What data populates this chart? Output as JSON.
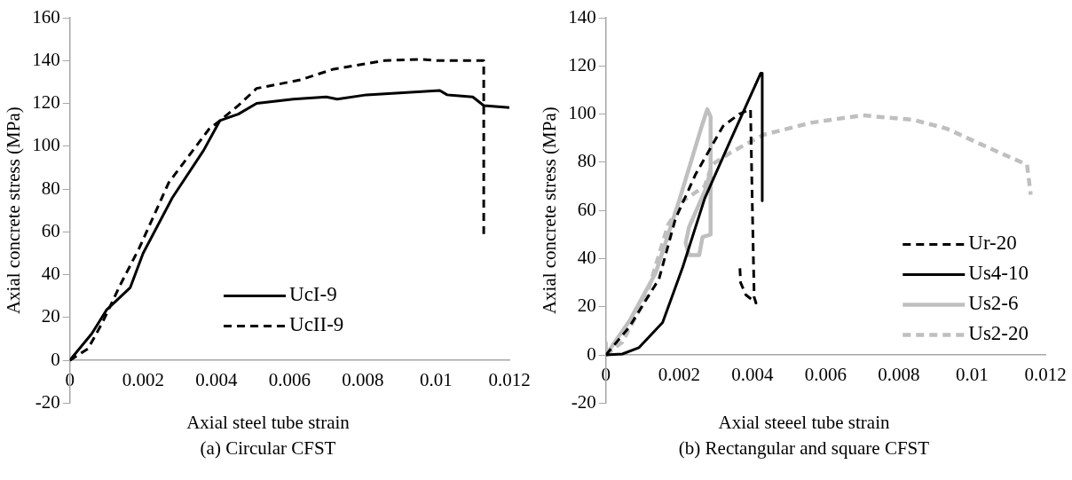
{
  "chart_data": [
    {
      "type": "line",
      "title": "(a) Circular CFST",
      "xlabel": "Axial steel tube strain",
      "ylabel": "Axial concrete stress (MPa)",
      "xlim": [
        0,
        0.012
      ],
      "xticks": [
        0,
        0.002,
        0.004,
        0.006,
        0.008,
        0.01,
        0.012
      ],
      "ylim": [
        -20,
        160
      ],
      "yticks": [
        -20,
        0,
        20,
        40,
        60,
        80,
        100,
        120,
        140,
        160
      ],
      "grid": false,
      "legend": "bottom right",
      "marker": "none",
      "series": [
        {
          "name": "UcI-9",
          "color": "#000000",
          "line_style": "solid",
          "x": [
            0,
            0.0006,
            0.001,
            0.00165,
            0.002,
            0.0028,
            0.00365,
            0.0041,
            0.0046,
            0.0051,
            0.0061,
            0.007,
            0.0073,
            0.0081,
            0.0101,
            0.0103,
            0.011,
            0.0113,
            0.012
          ],
          "values": [
            0,
            12.5,
            23.5,
            34,
            50,
            76,
            98,
            112,
            115,
            120,
            122,
            123,
            122,
            124,
            126,
            124,
            123,
            119,
            118
          ]
        },
        {
          "name": "UcII-9",
          "color": "#000000",
          "line_style": "dashed",
          "x": [
            0,
            0.0005,
            0.0009,
            0.00137,
            0.00155,
            0.0019,
            0.0027,
            0.0038,
            0.0041,
            0.0046,
            0.0051,
            0.0063,
            0.0072,
            0.0086,
            0.0096,
            0.01,
            0.0113,
            0.0113
          ],
          "values": [
            0,
            5.5,
            18,
            35,
            41,
            52.6,
            83,
            108,
            112,
            119,
            127,
            131,
            136,
            140,
            140.6,
            140,
            140,
            59
          ]
        }
      ]
    },
    {
      "type": "line",
      "title": "(b) Rectangular and square CFST",
      "xlabel": "Axial steeel tube strain",
      "ylabel": "Axial concrete stress (MPa)",
      "xlim": [
        0,
        0.012
      ],
      "xticks": [
        0,
        0.002,
        0.004,
        0.006,
        0.008,
        0.01,
        0.012
      ],
      "ylim": [
        -20,
        140
      ],
      "yticks": [
        -20,
        0,
        20,
        40,
        60,
        80,
        100,
        120,
        140
      ],
      "grid": false,
      "legend": "bottom right",
      "marker": "none",
      "series": [
        {
          "name": "Ur-20",
          "color": "#000000",
          "line_style": "dashed",
          "x": [
            0,
            0.00064,
            0.00145,
            0.0019,
            0.00245,
            0.0032,
            0.00364,
            0.00395,
            0.004,
            0.00405,
            0.0041,
            0.00382,
            0.00368,
            0.00366
          ],
          "values": [
            0,
            11.6,
            31.5,
            56.5,
            75,
            95,
            100,
            102,
            61.5,
            24,
            21.6,
            25,
            30,
            36
          ]
        },
        {
          "name": "Us4-10",
          "color": "#000000",
          "line_style": "solid",
          "x": [
            0,
            0.00045,
            0.0009,
            0.00155,
            0.0021,
            0.0027,
            0.0034,
            0.00423,
            0.00427,
            0.00427
          ],
          "values": [
            0,
            0.4,
            3,
            13.5,
            36.5,
            65,
            89,
            117,
            117,
            64
          ]
        },
        {
          "name": "Us2-6",
          "color": "#bfbfbf",
          "line_style": "solid",
          "x": [
            0,
            0,
            0.00064,
            0.00136,
            0.002,
            0.00264,
            0.00277,
            0.00286,
            0.00286,
            0.00264,
            0.00255,
            0.00227,
            0.00218,
            0.00227,
            0.00273,
            0.00286
          ],
          "values": [
            5,
            0,
            14,
            34,
            64,
            96,
            102,
            99,
            50,
            49,
            41.5,
            41.5,
            46.5,
            53,
            69,
            76.5
          ]
        },
        {
          "name": "Us2-20",
          "color": "#bfbfbf",
          "line_style": "dashed",
          "x": [
            0,
            0.00045,
            0.0011,
            0.0017,
            0.0021,
            0.0027,
            0.0029,
            0.0034,
            0.0043,
            0.0056,
            0.007,
            0.0084,
            0.0093,
            0.0106,
            0.0115,
            0.0116
          ],
          "values": [
            0,
            5.4,
            24,
            54,
            64,
            70,
            79,
            84,
            91.4,
            96.4,
            99.5,
            97.6,
            94,
            85,
            79,
            66.5
          ]
        }
      ]
    }
  ]
}
